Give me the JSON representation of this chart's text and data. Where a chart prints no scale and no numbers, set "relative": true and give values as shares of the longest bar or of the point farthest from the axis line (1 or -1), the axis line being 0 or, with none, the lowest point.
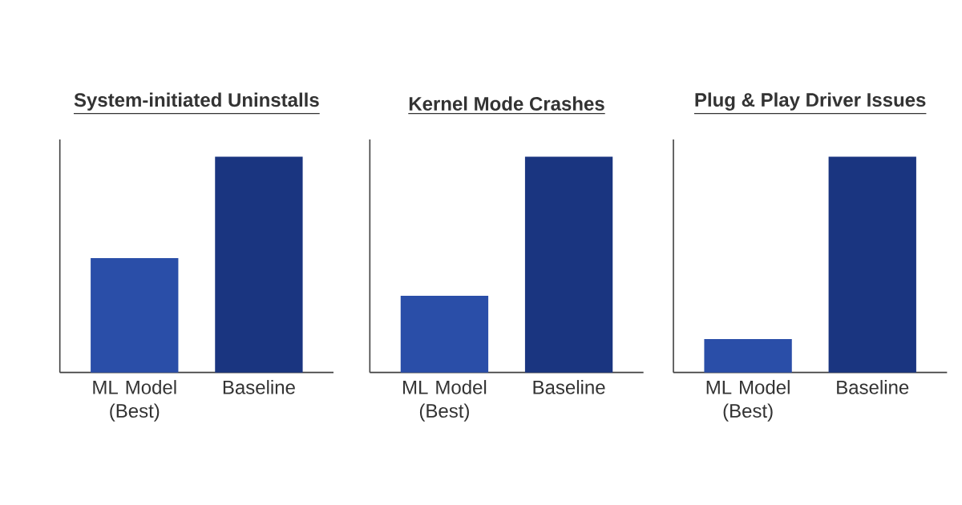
{
  "chart_data": [
    {
      "type": "bar",
      "title": "System-initiated Uninstalls",
      "categories": [
        "ML Model (Best)",
        "Baseline"
      ],
      "values": [
        0.53,
        1
      ],
      "colors": [
        "#2a4ea8",
        "#1a3580"
      ],
      "relative": true
    },
    {
      "type": "bar",
      "title": "Kernel Mode Crashes",
      "categories": [
        "ML Model (Best)",
        "Baseline"
      ],
      "values": [
        0.355,
        1
      ],
      "colors": [
        "#2a4ea8",
        "#1a3580"
      ],
      "relative": true
    },
    {
      "type": "bar",
      "title": "Plug & Play Driver Issues",
      "categories": [
        "ML Model (Best)",
        "Baseline"
      ],
      "values": [
        0.155,
        1
      ],
      "colors": [
        "#2a4ea8",
        "#1a3580"
      ],
      "relative": true
    }
  ]
}
